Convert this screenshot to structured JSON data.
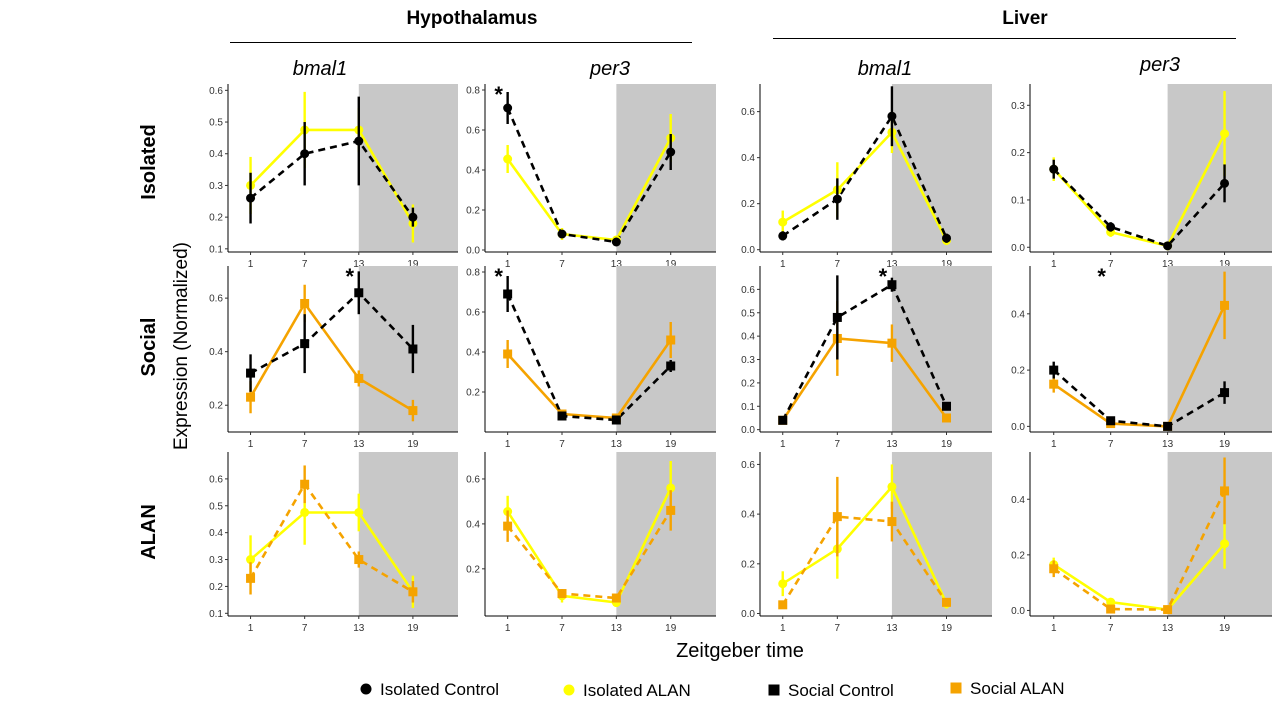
{
  "header": {
    "tissues": [
      "Hypothalamus",
      "Liver"
    ],
    "genes": [
      "bmal1",
      "per3",
      "bmal1",
      "per3"
    ],
    "rows": [
      "Isolated",
      "Social",
      "ALAN"
    ],
    "y_axis_label": "Expression (Normalized)",
    "x_axis_label": "Zeitgeber time"
  },
  "legend": [
    {
      "label": "Isolated Control",
      "color": "#000000",
      "shape": "circle"
    },
    {
      "label": "Isolated ALAN",
      "color": "#ffff00",
      "shape": "circle"
    },
    {
      "label": "Social Control",
      "color": "#000000",
      "shape": "square"
    },
    {
      "label": "Social ALAN",
      "color": "#f5a300",
      "shape": "square"
    }
  ],
  "colors": {
    "isolated_control": "#000000",
    "isolated_alan": "#ffff00",
    "social_control": "#000000",
    "social_alan": "#f5a300",
    "dark_phase": "#c8c8c8"
  },
  "chart_data": [
    {
      "type": "line",
      "tissue": "Hypothalamus",
      "gene": "bmal1",
      "row": "Isolated",
      "x": [
        1,
        7,
        13,
        19
      ],
      "ylim": [
        0.09,
        0.62
      ],
      "yticks": [
        "0.1",
        "0.2",
        "0.3",
        "0.4",
        "0.5",
        "0.6"
      ],
      "dark_phase": [
        13,
        25
      ],
      "series": [
        {
          "name": "Isolated Control",
          "color": "#000000",
          "marker": "circle",
          "dash": true,
          "values": [
            0.26,
            0.4,
            0.44,
            0.2
          ],
          "err": [
            0.08,
            0.1,
            0.14,
            0.03
          ]
        },
        {
          "name": "Isolated ALAN",
          "color": "#ffff00",
          "marker": "circle",
          "dash": false,
          "values": [
            0.3,
            0.475,
            0.475,
            0.18
          ],
          "err": [
            0.09,
            0.12,
            0.07,
            0.06
          ]
        }
      ],
      "annotations": []
    },
    {
      "type": "line",
      "tissue": "Hypothalamus",
      "gene": "per3",
      "row": "Isolated",
      "x": [
        1,
        7,
        13,
        19
      ],
      "ylim": [
        -0.01,
        0.83
      ],
      "yticks": [
        "0.0",
        "0.2",
        "0.4",
        "0.6",
        "0.8"
      ],
      "dark_phase": [
        13,
        25
      ],
      "series": [
        {
          "name": "Isolated Control",
          "color": "#000000",
          "marker": "circle",
          "dash": true,
          "values": [
            0.71,
            0.08,
            0.04,
            0.49
          ],
          "err": [
            0.08,
            0.02,
            0.02,
            0.09
          ]
        },
        {
          "name": "Isolated ALAN",
          "color": "#ffff00",
          "marker": "circle",
          "dash": false,
          "values": [
            0.455,
            0.08,
            0.05,
            0.56
          ],
          "err": [
            0.07,
            0.03,
            0.02,
            0.12
          ]
        }
      ],
      "annotations": [
        {
          "text": "*",
          "x": 1
        }
      ]
    },
    {
      "type": "line",
      "tissue": "Liver",
      "gene": "bmal1",
      "row": "Isolated",
      "x": [
        1,
        7,
        13,
        19
      ],
      "ylim": [
        -0.01,
        0.72
      ],
      "yticks": [
        "0.0",
        "0.2",
        "0.4",
        "0.6"
      ],
      "dark_phase": [
        13,
        25
      ],
      "series": [
        {
          "name": "Isolated Control",
          "color": "#000000",
          "marker": "circle",
          "dash": true,
          "values": [
            0.06,
            0.22,
            0.58,
            0.05
          ],
          "err": [
            0.02,
            0.09,
            0.13,
            0.02
          ]
        },
        {
          "name": "Isolated ALAN",
          "color": "#ffff00",
          "marker": "circle",
          "dash": false,
          "values": [
            0.12,
            0.26,
            0.51,
            0.04
          ],
          "err": [
            0.05,
            0.12,
            0.09,
            0.02
          ]
        }
      ],
      "annotations": []
    },
    {
      "type": "line",
      "tissue": "Liver",
      "gene": "per3",
      "row": "Isolated",
      "x": [
        1,
        7,
        13,
        19
      ],
      "ylim": [
        -0.01,
        0.345
      ],
      "yticks": [
        "0.0",
        "0.1",
        "0.2",
        "0.3"
      ],
      "dark_phase": [
        13,
        25
      ],
      "series": [
        {
          "name": "Isolated Control",
          "color": "#000000",
          "marker": "circle",
          "dash": true,
          "values": [
            0.165,
            0.043,
            0.003,
            0.135
          ],
          "err": [
            0.02,
            0.01,
            0.005,
            0.04
          ]
        },
        {
          "name": "Isolated ALAN",
          "color": "#ffff00",
          "marker": "circle",
          "dash": false,
          "values": [
            0.165,
            0.032,
            0.003,
            0.24
          ],
          "err": [
            0.025,
            0.01,
            0.005,
            0.09
          ]
        }
      ],
      "annotations": []
    },
    {
      "type": "line",
      "tissue": "Hypothalamus",
      "gene": "bmal1",
      "row": "Social",
      "x": [
        1,
        7,
        13,
        19
      ],
      "ylim": [
        0.1,
        0.72
      ],
      "yticks": [
        "0.2",
        "0.4",
        "0.6"
      ],
      "dark_phase": [
        13,
        25
      ],
      "series": [
        {
          "name": "Social Control",
          "color": "#000000",
          "marker": "square",
          "dash": true,
          "values": [
            0.32,
            0.43,
            0.62,
            0.41
          ],
          "err": [
            0.07,
            0.11,
            0.08,
            0.09
          ]
        },
        {
          "name": "Social ALAN",
          "color": "#f5a300",
          "marker": "square",
          "dash": false,
          "values": [
            0.23,
            0.58,
            0.3,
            0.18
          ],
          "err": [
            0.06,
            0.07,
            0.03,
            0.04
          ]
        }
      ],
      "annotations": [
        {
          "text": "*",
          "x": 13
        }
      ]
    },
    {
      "type": "line",
      "tissue": "Hypothalamus",
      "gene": "per3",
      "row": "Social",
      "x": [
        1,
        7,
        13,
        19
      ],
      "ylim": [
        0.0,
        0.83
      ],
      "yticks": [
        "0.2",
        "0.4",
        "0.6",
        "0.8"
      ],
      "dark_phase": [
        13,
        25
      ],
      "series": [
        {
          "name": "Social Control",
          "color": "#000000",
          "marker": "square",
          "dash": true,
          "values": [
            0.69,
            0.08,
            0.06,
            0.33
          ],
          "err": [
            0.09,
            0.02,
            0.01,
            0.03
          ]
        },
        {
          "name": "Social ALAN",
          "color": "#f5a300",
          "marker": "square",
          "dash": false,
          "values": [
            0.39,
            0.09,
            0.07,
            0.46
          ],
          "err": [
            0.07,
            0.02,
            0.01,
            0.09
          ]
        }
      ],
      "annotations": [
        {
          "text": "*",
          "x": 1
        }
      ]
    },
    {
      "type": "line",
      "tissue": "Liver",
      "gene": "bmal1",
      "row": "Social",
      "x": [
        1,
        7,
        13,
        19
      ],
      "ylim": [
        -0.01,
        0.7
      ],
      "yticks": [
        "0.0",
        "0.1",
        "0.2",
        "0.3",
        "0.4",
        "0.5",
        "0.6"
      ],
      "dark_phase": [
        13,
        25
      ],
      "series": [
        {
          "name": "Social Control",
          "color": "#000000",
          "marker": "square",
          "dash": true,
          "values": [
            0.04,
            0.48,
            0.62,
            0.1
          ],
          "err": [
            0.01,
            0.18,
            0.03,
            0.01
          ]
        },
        {
          "name": "Social ALAN",
          "color": "#f5a300",
          "marker": "square",
          "dash": false,
          "values": [
            0.04,
            0.39,
            0.37,
            0.05
          ],
          "err": [
            0.01,
            0.16,
            0.08,
            0.01
          ]
        }
      ],
      "annotations": [
        {
          "text": "*",
          "x": 13
        }
      ]
    },
    {
      "type": "line",
      "tissue": "Liver",
      "gene": "per3",
      "row": "Social",
      "x": [
        1,
        7,
        13,
        19
      ],
      "ylim": [
        -0.02,
        0.57
      ],
      "yticks": [
        "0.0",
        "0.2",
        "0.4"
      ],
      "dark_phase": [
        13,
        25
      ],
      "series": [
        {
          "name": "Social Control",
          "color": "#000000",
          "marker": "square",
          "dash": true,
          "values": [
            0.2,
            0.02,
            0.0,
            0.12
          ],
          "err": [
            0.03,
            0.01,
            0.01,
            0.04
          ]
        },
        {
          "name": "Social ALAN",
          "color": "#f5a300",
          "marker": "square",
          "dash": false,
          "values": [
            0.15,
            0.01,
            0.0,
            0.43
          ],
          "err": [
            0.03,
            0.01,
            0.01,
            0.12
          ]
        }
      ],
      "annotations": [
        {
          "text": "*",
          "x": 7
        }
      ]
    },
    {
      "type": "line",
      "tissue": "Hypothalamus",
      "gene": "bmal1",
      "row": "ALAN",
      "x": [
        1,
        7,
        13,
        19
      ],
      "ylim": [
        0.09,
        0.7
      ],
      "yticks": [
        "0.1",
        "0.2",
        "0.3",
        "0.4",
        "0.5",
        "0.6"
      ],
      "dark_phase": [
        13,
        25
      ],
      "series": [
        {
          "name": "Isolated ALAN",
          "color": "#ffff00",
          "marker": "circle",
          "dash": false,
          "values": [
            0.3,
            0.475,
            0.475,
            0.18
          ],
          "err": [
            0.09,
            0.12,
            0.07,
            0.06
          ]
        },
        {
          "name": "Social ALAN",
          "color": "#f5a300",
          "marker": "square",
          "dash": true,
          "values": [
            0.23,
            0.58,
            0.3,
            0.18
          ],
          "err": [
            0.06,
            0.07,
            0.03,
            0.04
          ]
        }
      ],
      "annotations": []
    },
    {
      "type": "line",
      "tissue": "Hypothalamus",
      "gene": "per3",
      "row": "ALAN",
      "x": [
        1,
        7,
        13,
        19
      ],
      "ylim": [
        -0.01,
        0.72
      ],
      "yticks": [
        "0.2",
        "0.4",
        "0.6"
      ],
      "dark_phase": [
        13,
        25
      ],
      "series": [
        {
          "name": "Isolated ALAN",
          "color": "#ffff00",
          "marker": "circle",
          "dash": false,
          "values": [
            0.455,
            0.08,
            0.05,
            0.56
          ],
          "err": [
            0.07,
            0.03,
            0.02,
            0.12
          ]
        },
        {
          "name": "Social ALAN",
          "color": "#f5a300",
          "marker": "square",
          "dash": true,
          "values": [
            0.39,
            0.09,
            0.07,
            0.46
          ],
          "err": [
            0.07,
            0.02,
            0.01,
            0.09
          ]
        }
      ],
      "annotations": []
    },
    {
      "type": "line",
      "tissue": "Liver",
      "gene": "bmal1",
      "row": "ALAN",
      "x": [
        1,
        7,
        13,
        19
      ],
      "ylim": [
        -0.01,
        0.65
      ],
      "yticks": [
        "0.0",
        "0.2",
        "0.4",
        "0.6"
      ],
      "dark_phase": [
        13,
        25
      ],
      "series": [
        {
          "name": "Isolated ALAN",
          "color": "#ffff00",
          "marker": "circle",
          "dash": false,
          "values": [
            0.12,
            0.26,
            0.51,
            0.04
          ],
          "err": [
            0.05,
            0.12,
            0.09,
            0.02
          ]
        },
        {
          "name": "Social ALAN",
          "color": "#f5a300",
          "marker": "square",
          "dash": true,
          "values": [
            0.035,
            0.39,
            0.37,
            0.045
          ],
          "err": [
            0.01,
            0.16,
            0.08,
            0.01
          ]
        }
      ],
      "annotations": []
    },
    {
      "type": "line",
      "tissue": "Liver",
      "gene": "per3",
      "row": "ALAN",
      "x": [
        1,
        7,
        13,
        19
      ],
      "ylim": [
        -0.02,
        0.57
      ],
      "yticks": [
        "0.0",
        "0.2",
        "0.4"
      ],
      "dark_phase": [
        13,
        25
      ],
      "series": [
        {
          "name": "Isolated ALAN",
          "color": "#ffff00",
          "marker": "circle",
          "dash": false,
          "values": [
            0.165,
            0.03,
            0.003,
            0.24
          ],
          "err": [
            0.025,
            0.01,
            0.005,
            0.09
          ]
        },
        {
          "name": "Social ALAN",
          "color": "#f5a300",
          "marker": "square",
          "dash": true,
          "values": [
            0.15,
            0.005,
            0.003,
            0.43
          ],
          "err": [
            0.03,
            0.01,
            0.005,
            0.12
          ]
        }
      ],
      "annotations": []
    }
  ]
}
